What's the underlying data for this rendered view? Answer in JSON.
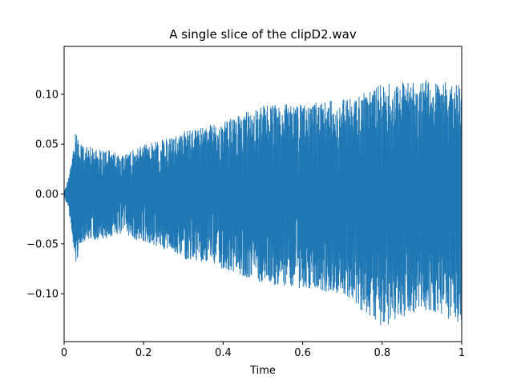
{
  "chart_data": {
    "type": "line",
    "title": "A single slice of the clipD2.wav",
    "xlabel": "Time",
    "ylabel": "",
    "xlim": [
      0,
      1
    ],
    "ylim": [
      -0.148,
      0.148
    ],
    "xticks": [
      0,
      0.2,
      0.4,
      0.6,
      0.8,
      1
    ],
    "xtick_labels": [
      "0",
      "0.2",
      "0.4",
      "0.6",
      "0.8",
      "1"
    ],
    "yticks": [
      0.1,
      0.05,
      0.0,
      -0.05,
      -0.1
    ],
    "ytick_labels": [
      "0.10",
      "0.05",
      "0.00",
      "−0.05",
      "−0.10"
    ],
    "grid": false,
    "legend": "none",
    "series": [
      {
        "color": "#1f77b4",
        "envelope": {
          "t": [
            0.0,
            0.01,
            0.02,
            0.03,
            0.04,
            0.06,
            0.1,
            0.15,
            0.2,
            0.25,
            0.3,
            0.35,
            0.4,
            0.5,
            0.6,
            0.7,
            0.8,
            0.9,
            1.0
          ],
          "upper": [
            0.002,
            0.015,
            0.035,
            0.07,
            0.05,
            0.048,
            0.045,
            0.04,
            0.05,
            0.055,
            0.063,
            0.068,
            0.072,
            0.09,
            0.09,
            0.095,
            0.11,
            0.115,
            0.11
          ],
          "lower": [
            -0.002,
            -0.015,
            -0.04,
            -0.072,
            -0.05,
            -0.048,
            -0.045,
            -0.04,
            -0.05,
            -0.055,
            -0.065,
            -0.07,
            -0.075,
            -0.09,
            -0.095,
            -0.1,
            -0.135,
            -0.115,
            -0.13
          ]
        }
      }
    ]
  }
}
